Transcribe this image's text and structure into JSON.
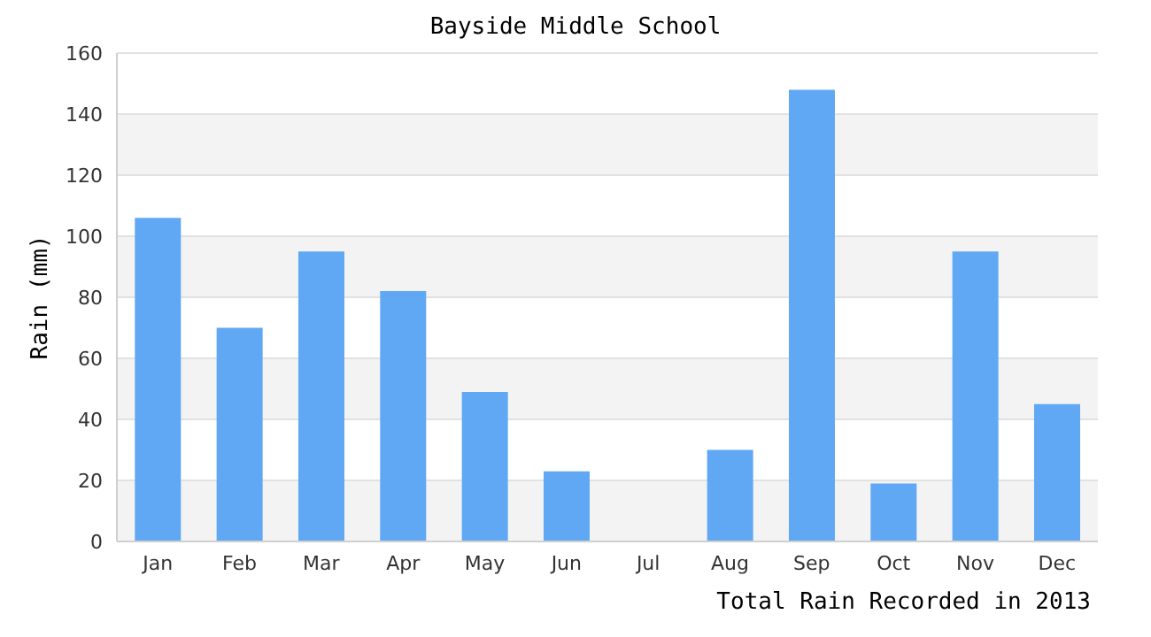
{
  "chart_data": {
    "type": "bar",
    "title": "Bayside Middle School",
    "xlabel": "Total Rain Recorded in 2013",
    "ylabel": "Rain (mm)",
    "categories": [
      "Jan",
      "Feb",
      "Mar",
      "Apr",
      "May",
      "Jun",
      "Jul",
      "Aug",
      "Sep",
      "Oct",
      "Nov",
      "Dec"
    ],
    "values": [
      106,
      70,
      95,
      82,
      49,
      23,
      0,
      30,
      148,
      19,
      95,
      45
    ],
    "color": "#60a8f4",
    "ylim": [
      0,
      160
    ],
    "yticks": [
      0,
      20,
      40,
      60,
      80,
      100,
      120,
      140,
      160
    ],
    "grid": "y"
  }
}
